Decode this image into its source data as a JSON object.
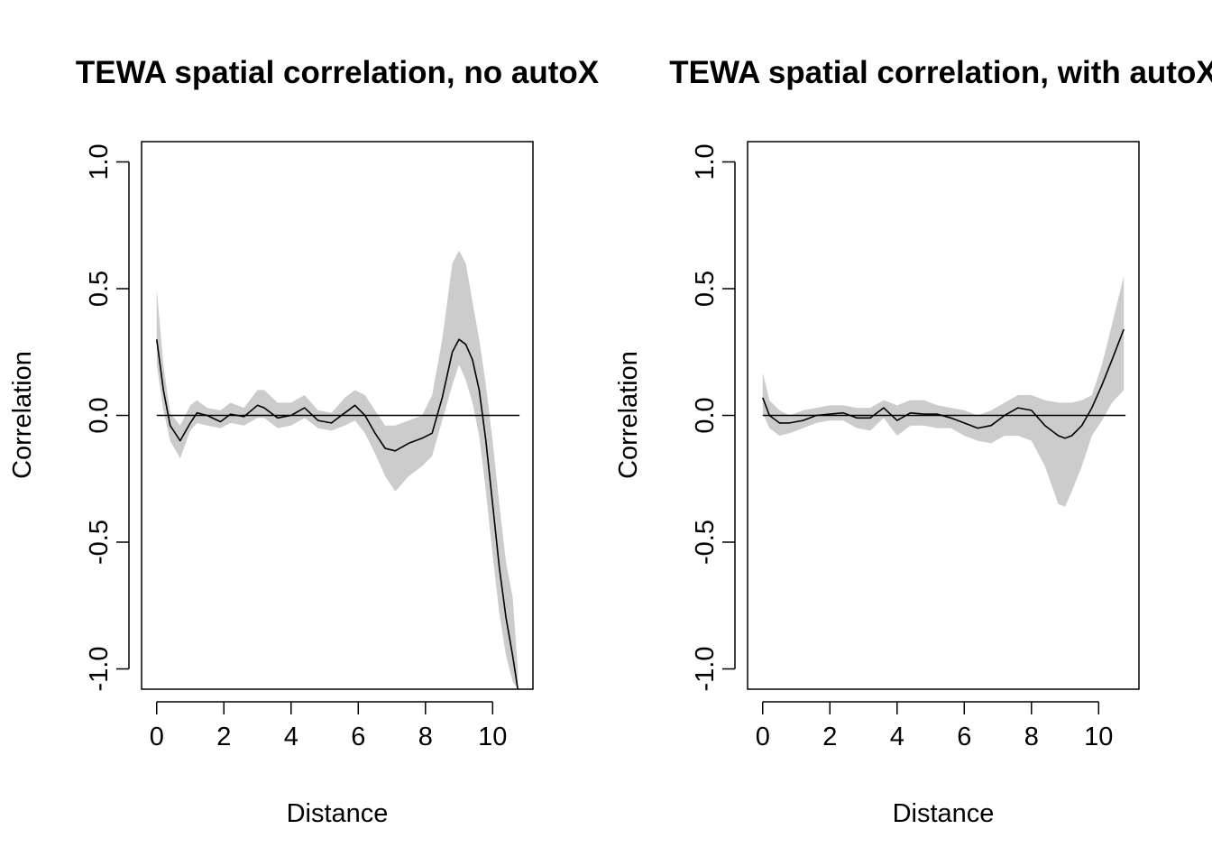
{
  "chart_data": [
    {
      "type": "line",
      "title": "TEWA spatial correlation, no autoX",
      "xlabel": "Distance",
      "ylabel": "Correlation",
      "xlim": [
        -0.45,
        11.2
      ],
      "ylim": [
        -1.08,
        1.08
      ],
      "x_ticks": [
        0,
        2,
        4,
        6,
        8,
        10
      ],
      "x_tick_labels": [
        "0",
        "2",
        "4",
        "6",
        "8",
        "10"
      ],
      "y_ticks": [
        -1.0,
        -0.5,
        0.0,
        0.5,
        1.0
      ],
      "y_tick_labels": [
        "-1.0",
        "-0.5",
        "0.0",
        "0.5",
        "1.0"
      ],
      "reference_line": {
        "y": 0,
        "x_from": 0,
        "x_to": 10.8
      },
      "band_color": "#cccccc",
      "line_color": "#000000",
      "series": [
        {
          "x": [
            0,
            0.2,
            0.4,
            0.7,
            1.0,
            1.2,
            1.5,
            1.9,
            2.2,
            2.6,
            3.0,
            3.2,
            3.6,
            4.0,
            4.4,
            4.8,
            5.2,
            5.6,
            5.9,
            6.2,
            6.5,
            6.8,
            7.1,
            7.5,
            7.9,
            8.2,
            8.5,
            8.8,
            9.0,
            9.2,
            9.4,
            9.6,
            9.8,
            10.0,
            10.2,
            10.4,
            10.6,
            10.75
          ],
          "y": [
            0.3,
            0.1,
            -0.04,
            -0.1,
            -0.03,
            0.01,
            0.0,
            -0.025,
            0.005,
            -0.005,
            0.04,
            0.03,
            -0.01,
            0.0,
            0.03,
            -0.02,
            -0.03,
            0.01,
            0.04,
            0.0,
            -0.07,
            -0.13,
            -0.14,
            -0.11,
            -0.09,
            -0.07,
            0.07,
            0.25,
            0.3,
            0.28,
            0.22,
            0.1,
            -0.1,
            -0.35,
            -0.6,
            -0.8,
            -0.95,
            -1.08
          ],
          "lower": [
            0.2,
            0.02,
            -0.1,
            -0.17,
            -0.06,
            -0.03,
            -0.04,
            -0.05,
            -0.03,
            -0.04,
            -0.01,
            -0.01,
            -0.05,
            -0.04,
            -0.01,
            -0.05,
            -0.06,
            -0.04,
            -0.02,
            -0.07,
            -0.15,
            -0.24,
            -0.3,
            -0.24,
            -0.2,
            -0.16,
            -0.02,
            0.12,
            0.2,
            0.14,
            0.05,
            -0.08,
            -0.3,
            -0.55,
            -0.78,
            -0.95,
            -1.05,
            -1.08
          ],
          "upper": [
            0.5,
            0.2,
            0.01,
            -0.04,
            0.04,
            0.06,
            0.03,
            0.02,
            0.05,
            0.03,
            0.1,
            0.1,
            0.05,
            0.05,
            0.08,
            0.02,
            0.01,
            0.07,
            0.1,
            0.08,
            0.02,
            -0.04,
            -0.04,
            -0.02,
            0.0,
            0.08,
            0.3,
            0.6,
            0.65,
            0.6,
            0.45,
            0.3,
            0.12,
            -0.1,
            -0.35,
            -0.58,
            -0.72,
            -1.0
          ]
        }
      ]
    },
    {
      "type": "line",
      "title": "TEWA spatial correlation, with autoX",
      "xlabel": "Distance",
      "ylabel": "Correlation",
      "xlim": [
        -0.45,
        11.2
      ],
      "ylim": [
        -1.08,
        1.08
      ],
      "x_ticks": [
        0,
        2,
        4,
        6,
        8,
        10
      ],
      "x_tick_labels": [
        "0",
        "2",
        "4",
        "6",
        "8",
        "10"
      ],
      "y_ticks": [
        -1.0,
        -0.5,
        0.0,
        0.5,
        1.0
      ],
      "y_tick_labels": [
        "-1.0",
        "-0.5",
        "0.0",
        "0.5",
        "1.0"
      ],
      "reference_line": {
        "y": 0,
        "x_from": 0,
        "x_to": 10.8
      },
      "band_color": "#cccccc",
      "line_color": "#000000",
      "series": [
        {
          "x": [
            0,
            0.2,
            0.5,
            0.8,
            1.2,
            1.6,
            2.0,
            2.4,
            2.8,
            3.2,
            3.6,
            4.0,
            4.4,
            4.8,
            5.2,
            5.6,
            6.0,
            6.4,
            6.8,
            7.2,
            7.6,
            8.0,
            8.4,
            8.8,
            9.0,
            9.2,
            9.5,
            9.8,
            10.1,
            10.4,
            10.75
          ],
          "y": [
            0.07,
            0.0,
            -0.03,
            -0.03,
            -0.02,
            0.0,
            0.005,
            0.01,
            -0.01,
            -0.01,
            0.03,
            -0.02,
            0.01,
            0.005,
            0.005,
            -0.01,
            -0.03,
            -0.05,
            -0.04,
            0.0,
            0.03,
            0.02,
            -0.04,
            -0.08,
            -0.09,
            -0.08,
            -0.04,
            0.03,
            0.12,
            0.22,
            0.34
          ],
          "lower": [
            0.01,
            -0.05,
            -0.08,
            -0.07,
            -0.05,
            -0.03,
            -0.02,
            -0.02,
            -0.05,
            -0.06,
            -0.01,
            -0.08,
            -0.04,
            -0.04,
            -0.05,
            -0.05,
            -0.08,
            -0.1,
            -0.11,
            -0.08,
            -0.08,
            -0.1,
            -0.2,
            -0.35,
            -0.36,
            -0.3,
            -0.2,
            -0.08,
            -0.02,
            0.05,
            0.1
          ],
          "upper": [
            0.17,
            0.06,
            0.02,
            0.0,
            0.02,
            0.03,
            0.04,
            0.04,
            0.03,
            0.03,
            0.06,
            0.04,
            0.06,
            0.06,
            0.04,
            0.03,
            0.02,
            0.0,
            0.02,
            0.05,
            0.08,
            0.08,
            0.06,
            0.05,
            0.05,
            0.05,
            0.06,
            0.08,
            0.2,
            0.36,
            0.55
          ]
        }
      ]
    }
  ]
}
